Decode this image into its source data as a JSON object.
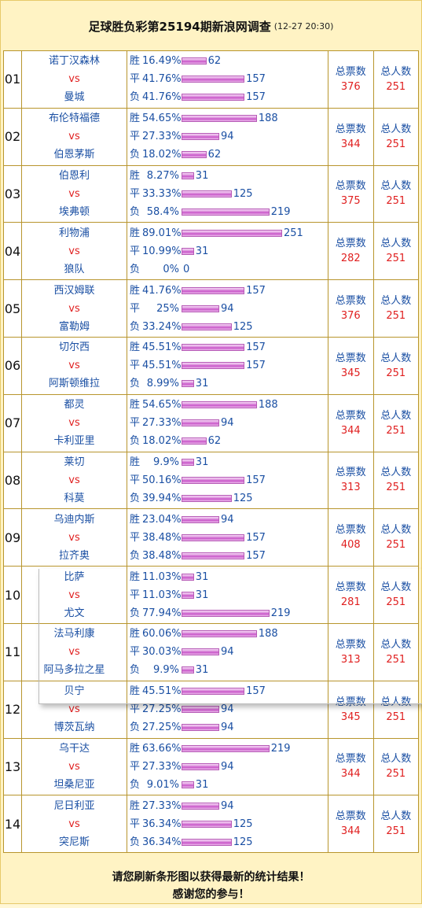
{
  "header": {
    "title": "足球胜负彩第25194期新浪网调查",
    "time": "(12-27 20:30)"
  },
  "labels": {
    "vs": "vs",
    "win": "胜",
    "draw": "平",
    "lose": "负",
    "total_votes": "总票数",
    "total_people": "总人数"
  },
  "matches": [
    {
      "no": "01",
      "home": "诺丁汉森林",
      "away": "曼城",
      "win": {
        "pct": "16.49%",
        "votes": 62
      },
      "draw": {
        "pct": "41.76%",
        "votes": 157
      },
      "lose": {
        "pct": "41.76%",
        "votes": 157
      },
      "total_votes": "376",
      "total_people": "251"
    },
    {
      "no": "02",
      "home": "布伦特福德",
      "away": "伯恩茅斯",
      "win": {
        "pct": "54.65%",
        "votes": 188
      },
      "draw": {
        "pct": "27.33%",
        "votes": 94
      },
      "lose": {
        "pct": "18.02%",
        "votes": 62
      },
      "total_votes": "344",
      "total_people": "251"
    },
    {
      "no": "03",
      "home": "伯恩利",
      "away": "埃弗顿",
      "win": {
        "pct": "8.27%",
        "votes": 31
      },
      "draw": {
        "pct": "33.33%",
        "votes": 125
      },
      "lose": {
        "pct": "58.4%",
        "votes": 219
      },
      "total_votes": "375",
      "total_people": "251"
    },
    {
      "no": "04",
      "home": "利物浦",
      "away": "狼队",
      "win": {
        "pct": "89.01%",
        "votes": 251
      },
      "draw": {
        "pct": "10.99%",
        "votes": 31
      },
      "lose": {
        "pct": "0%",
        "votes": 0
      },
      "total_votes": "282",
      "total_people": "251"
    },
    {
      "no": "05",
      "home": "西汉姆联",
      "away": "富勒姆",
      "win": {
        "pct": "41.76%",
        "votes": 157
      },
      "draw": {
        "pct": "25%",
        "votes": 94
      },
      "lose": {
        "pct": "33.24%",
        "votes": 125
      },
      "total_votes": "376",
      "total_people": "251"
    },
    {
      "no": "06",
      "home": "切尔西",
      "away": "阿斯顿维拉",
      "win": {
        "pct": "45.51%",
        "votes": 157
      },
      "draw": {
        "pct": "45.51%",
        "votes": 157
      },
      "lose": {
        "pct": "8.99%",
        "votes": 31
      },
      "total_votes": "345",
      "total_people": "251"
    },
    {
      "no": "07",
      "home": "都灵",
      "away": "卡利亚里",
      "win": {
        "pct": "54.65%",
        "votes": 188
      },
      "draw": {
        "pct": "27.33%",
        "votes": 94
      },
      "lose": {
        "pct": "18.02%",
        "votes": 62
      },
      "total_votes": "344",
      "total_people": "251"
    },
    {
      "no": "08",
      "home": "莱切",
      "away": "科莫",
      "win": {
        "pct": "9.9%",
        "votes": 31
      },
      "draw": {
        "pct": "50.16%",
        "votes": 157
      },
      "lose": {
        "pct": "39.94%",
        "votes": 125
      },
      "total_votes": "313",
      "total_people": "251"
    },
    {
      "no": "09",
      "home": "乌迪内斯",
      "away": "拉齐奥",
      "win": {
        "pct": "23.04%",
        "votes": 94
      },
      "draw": {
        "pct": "38.48%",
        "votes": 157
      },
      "lose": {
        "pct": "38.48%",
        "votes": 157
      },
      "total_votes": "408",
      "total_people": "251"
    },
    {
      "no": "10",
      "home": "比萨",
      "away": "尤文",
      "win": {
        "pct": "11.03%",
        "votes": 31
      },
      "draw": {
        "pct": "11.03%",
        "votes": 31
      },
      "lose": {
        "pct": "77.94%",
        "votes": 219
      },
      "total_votes": "281",
      "total_people": "251"
    },
    {
      "no": "11",
      "home": "法马利康",
      "away": "阿马多拉之星",
      "win": {
        "pct": "60.06%",
        "votes": 188
      },
      "draw": {
        "pct": "30.03%",
        "votes": 94
      },
      "lose": {
        "pct": "9.9%",
        "votes": 31
      },
      "total_votes": "313",
      "total_people": "251"
    },
    {
      "no": "12",
      "home": "贝宁",
      "away": "博茨瓦纳",
      "win": {
        "pct": "45.51%",
        "votes": 157
      },
      "draw": {
        "pct": "27.25%",
        "votes": 94
      },
      "lose": {
        "pct": "27.25%",
        "votes": 94
      },
      "total_votes": "345",
      "total_people": "251"
    },
    {
      "no": "13",
      "home": "乌干达",
      "away": "坦桑尼亚",
      "win": {
        "pct": "63.66%",
        "votes": 219
      },
      "draw": {
        "pct": "27.33%",
        "votes": 94
      },
      "lose": {
        "pct": "9.01%",
        "votes": 31
      },
      "total_votes": "344",
      "total_people": "251"
    },
    {
      "no": "14",
      "home": "尼日利亚",
      "away": "突尼斯",
      "win": {
        "pct": "27.33%",
        "votes": 94
      },
      "draw": {
        "pct": "36.34%",
        "votes": 125
      },
      "lose": {
        "pct": "36.34%",
        "votes": 125
      },
      "total_votes": "344",
      "total_people": "251"
    }
  ],
  "footer": {
    "line1": "请您刷新条形图以获得最新的统计结果！",
    "line2": "感谢您的参与！"
  }
}
